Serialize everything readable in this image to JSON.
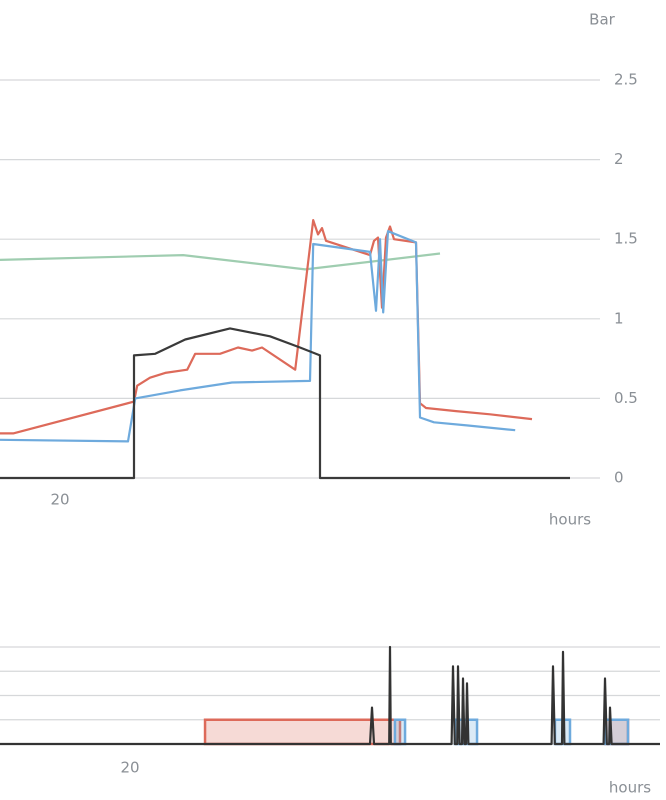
{
  "chart_data": [
    {
      "type": "line",
      "y_label": "Bar",
      "x_label": "hours",
      "xlim": [
        18.5,
        33.5
      ],
      "xticks": [
        20
      ],
      "ylim": [
        0,
        2.5
      ],
      "yticks": [
        0,
        0.5,
        1,
        1.5,
        2,
        2.5
      ],
      "grid": true,
      "series": [
        {
          "color": "#9fcdb0",
          "x": [
            18.5,
            23.08,
            26.13,
            29.5
          ],
          "values": [
            1.37,
            1.4,
            1.31,
            1.41
          ]
        },
        {
          "color": "#dd6a5a",
          "x": [
            18.5,
            18.83,
            21.85,
            21.93,
            22.25,
            22.63,
            23.18,
            23.38,
            24,
            24.45,
            24.8,
            25.05,
            25.88,
            26.33,
            26.45,
            26.55,
            26.65,
            27.75,
            27.85,
            27.95,
            28.05,
            28.15,
            28.25,
            28.35,
            28.9,
            29,
            29.15,
            29.9,
            30.75,
            31.8
          ],
          "values": [
            0.28,
            0.28,
            0.48,
            0.58,
            0.63,
            0.66,
            0.68,
            0.78,
            0.78,
            0.82,
            0.8,
            0.82,
            0.68,
            1.62,
            1.53,
            1.57,
            1.49,
            1.4,
            1.49,
            1.51,
            1.07,
            1.51,
            1.58,
            1.5,
            1.48,
            0.47,
            0.44,
            0.42,
            0.4,
            0.37
          ]
        },
        {
          "color": "#6eaadd",
          "x": [
            18.5,
            21.7,
            21.88,
            23,
            24.3,
            26.25,
            26.33,
            27.75,
            27.9,
            28,
            28.08,
            28.2,
            28.9,
            29,
            29.35,
            30.2,
            31.38
          ],
          "values": [
            0.24,
            0.23,
            0.5,
            0.55,
            0.6,
            0.61,
            1.47,
            1.42,
            1.05,
            1.5,
            1.04,
            1.55,
            1.48,
            0.38,
            0.35,
            0.33,
            0.3
          ]
        },
        {
          "color": "#3a3a3a",
          "x": [
            18.5,
            21.85,
            21.85,
            22.38,
            23.13,
            24.25,
            25.25,
            26,
            26.5,
            26.5,
            32.75
          ],
          "values": [
            0,
            0,
            0.77,
            0.78,
            0.87,
            0.94,
            0.89,
            0.82,
            0.77,
            0,
            0
          ]
        }
      ]
    },
    {
      "type": "line",
      "x_label": "hours",
      "xlim": [
        11.875,
        53.125
      ],
      "xticks": [
        20
      ],
      "ylim": [
        0,
        4
      ],
      "yticks": [
        0,
        1,
        2,
        3,
        4
      ],
      "grid": true,
      "spans": [
        {
          "color": "#dd6a5a",
          "starts": [
            24.69,
            49.69
          ],
          "ends": [
            36.875,
            51.125
          ],
          "values": [
            1,
            1
          ]
        },
        {
          "color": "#6eaadd",
          "starts": [
            36.56,
            40.31,
            46.56,
            49.69
          ],
          "ends": [
            37.19,
            41.69,
            47.5,
            51.125
          ],
          "values": [
            1,
            1,
            1,
            1
          ]
        }
      ],
      "series": [
        {
          "color": "#333333",
          "x": [
            11.875,
            35,
            35.125,
            35.25,
            36.2,
            36.25,
            36.3,
            40.1,
            40.19,
            40.3,
            40.45,
            40.5,
            40.6,
            40.75,
            40.81,
            40.9,
            41,
            41.06,
            41.15,
            46.35,
            46.44,
            46.55,
            47,
            47.06,
            47.15,
            49.6,
            49.69,
            49.8,
            49.95,
            50,
            50.1,
            53.125
          ],
          "values": [
            0,
            0,
            1.5,
            0,
            0,
            4,
            0,
            0,
            3.2,
            0,
            0,
            3.2,
            0,
            0,
            2.7,
            0,
            0,
            2.5,
            0,
            0,
            3.2,
            0,
            0,
            3.8,
            0,
            0,
            2.7,
            0,
            0,
            1.5,
            0,
            0
          ]
        }
      ]
    }
  ]
}
